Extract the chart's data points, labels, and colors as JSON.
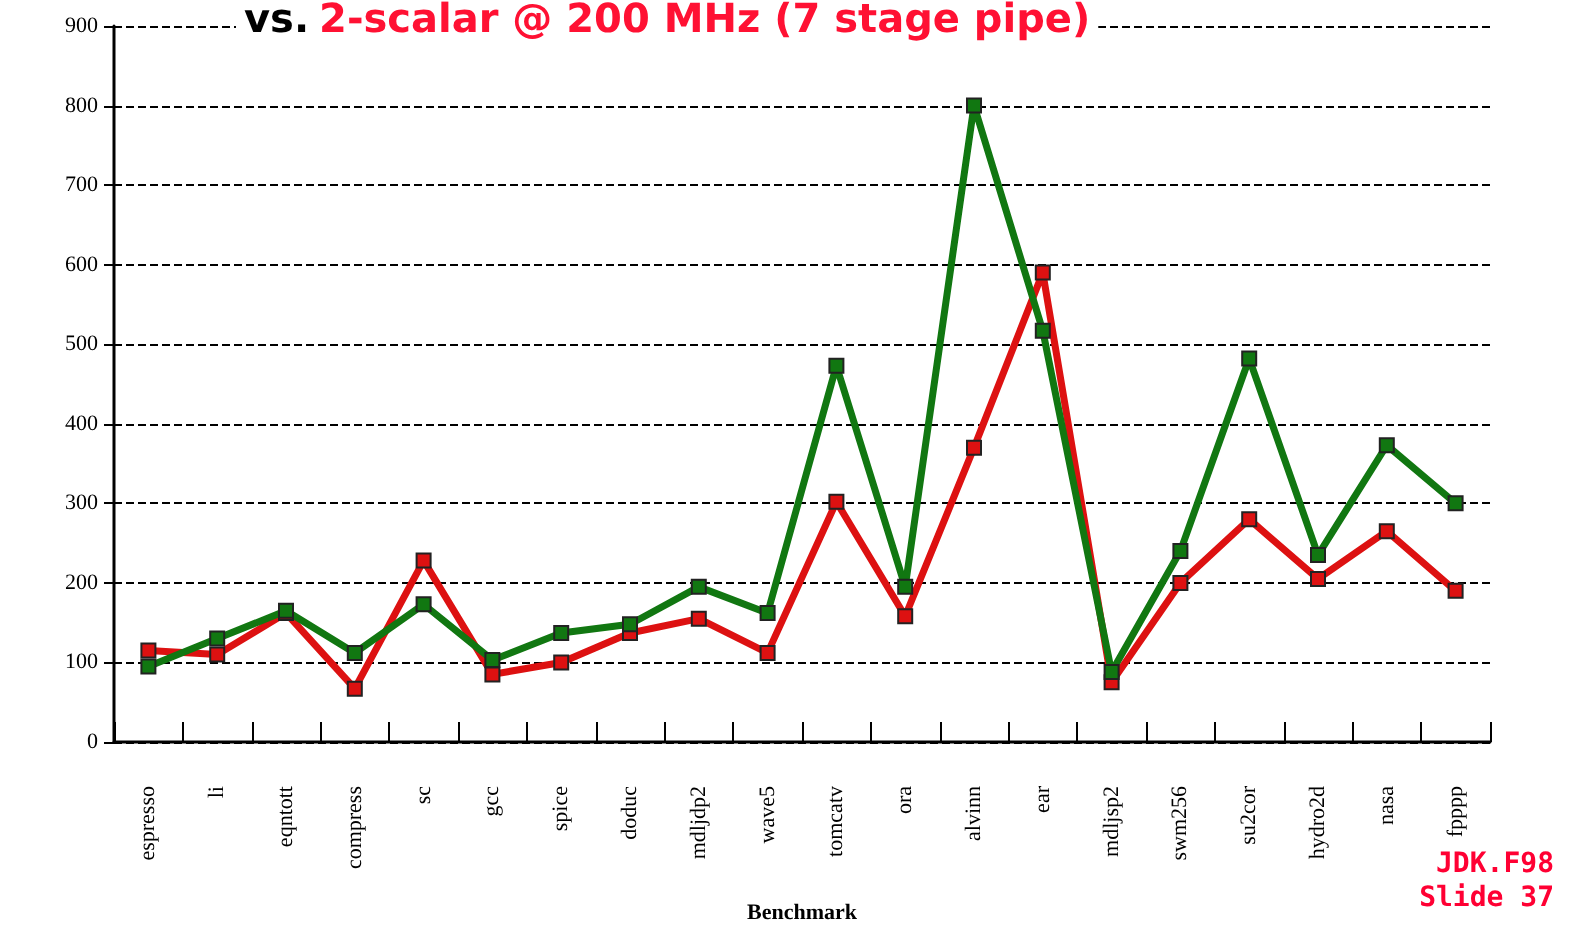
{
  "chart_data": {
    "type": "line",
    "title": "vs. 2-scalar @ 200 MHz (7 stage pipe)",
    "xlabel": "Benchmark",
    "categories": [
      "espresso",
      "li",
      "eqntott",
      "compress",
      "sc",
      "gcc",
      "spice",
      "doduc",
      "mdljdp2",
      "wave5",
      "tomcatv",
      "ora",
      "alvinn",
      "ear",
      "mdljsp2",
      "swm256",
      "su2cor",
      "hydro2d",
      "nasa",
      "fpppp"
    ],
    "series": [
      {
        "color": "#dd1111",
        "values": [
          115,
          110,
          162,
          67,
          228,
          85,
          100,
          137,
          155,
          112,
          302,
          158,
          370,
          590,
          75,
          200,
          280,
          205,
          265,
          190
        ]
      },
      {
        "color": "#117711",
        "values": [
          95,
          130,
          165,
          112,
          173,
          103,
          137,
          148,
          195,
          162,
          473,
          195,
          800,
          517,
          88,
          240,
          482,
          235,
          373,
          300
        ]
      }
    ],
    "ylim": [
      0,
      900
    ],
    "yticks": [
      0,
      100,
      200,
      300,
      400,
      500,
      600,
      700,
      800,
      900
    ],
    "grid": "y",
    "marker": "square",
    "line_style": "solid",
    "annotations": [
      "JDK.F98",
      "Slide 37"
    ]
  }
}
